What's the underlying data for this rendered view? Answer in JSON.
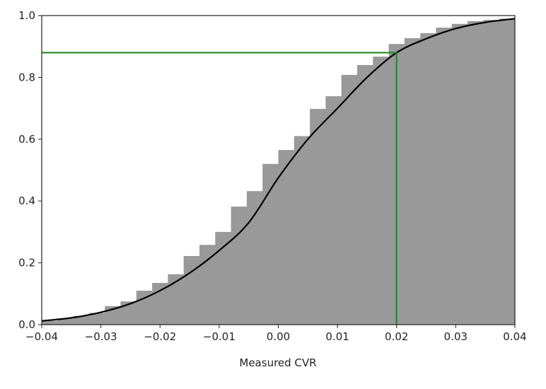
{
  "chart_data": {
    "type": "bar",
    "subtype": "cumulative-histogram-with-cdf-line",
    "title": "",
    "xlabel": "Measured CVR",
    "ylabel": "",
    "xlim": [
      -0.04,
      0.04
    ],
    "ylim": [
      0.0,
      1.0
    ],
    "grid": false,
    "xticks": [
      "−0.04",
      "−0.03",
      "−0.02",
      "−0.01",
      "0.00",
      "0.01",
      "0.02",
      "0.03",
      "0.04"
    ],
    "xtick_values": [
      -0.04,
      -0.03,
      -0.02,
      -0.01,
      0.0,
      0.01,
      0.02,
      0.03,
      0.04
    ],
    "yticks": [
      "0.0",
      "0.2",
      "0.4",
      "0.6",
      "0.8",
      "1.0"
    ],
    "ytick_values": [
      0.0,
      0.2,
      0.4,
      0.6,
      0.8,
      1.0
    ],
    "bins": {
      "range": [
        -0.04,
        0.04
      ],
      "count": 30,
      "values": [
        0.012,
        0.02,
        0.028,
        0.038,
        0.06,
        0.075,
        0.11,
        0.135,
        0.163,
        0.222,
        0.258,
        0.3,
        0.382,
        0.432,
        0.52,
        0.565,
        0.61,
        0.698,
        0.739,
        0.808,
        0.84,
        0.867,
        0.908,
        0.927,
        0.943,
        0.961,
        0.973,
        0.982,
        0.986,
        0.99
      ],
      "color": "#999999"
    },
    "cdf_line": {
      "x": [
        -0.04,
        -0.035,
        -0.03,
        -0.025,
        -0.02,
        -0.015,
        -0.01,
        -0.005,
        0.0,
        0.005,
        0.01,
        0.015,
        0.02,
        0.025,
        0.03,
        0.035,
        0.04
      ],
      "y": [
        0.012,
        0.022,
        0.04,
        0.068,
        0.11,
        0.167,
        0.24,
        0.33,
        0.475,
        0.6,
        0.7,
        0.8,
        0.88,
        0.925,
        0.958,
        0.978,
        0.99
      ],
      "color": "#000000"
    },
    "reference_lines": {
      "x": 0.02,
      "y": 0.88,
      "color": "#228b22"
    }
  }
}
